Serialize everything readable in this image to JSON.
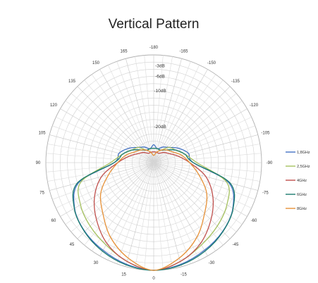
{
  "chart_data": {
    "type": "polar-line",
    "title": "Vertical Pattern",
    "angle_ticks": [
      "-180",
      "-165",
      "-150",
      "-135",
      "-120",
      "-105",
      "-90",
      "-75",
      "-60",
      "-45",
      "-30",
      "-15",
      "0",
      "15",
      "30",
      "45",
      "60",
      "75",
      "90",
      "105",
      "120",
      "135",
      "150",
      "165"
    ],
    "angle_values": [
      -180,
      -165,
      -150,
      -135,
      -120,
      -105,
      -90,
      -75,
      -60,
      -45,
      -30,
      -15,
      0,
      15,
      30,
      45,
      60,
      75,
      90,
      105,
      120,
      135,
      150,
      165
    ],
    "radial_ticks": [
      {
        "label": "-3dB",
        "value": -3
      },
      {
        "label": "-6dB",
        "value": -6
      },
      {
        "label": "-10dB",
        "value": -10
      },
      {
        "label": "-20dB",
        "value": -20
      }
    ],
    "radial_range": [
      -30,
      0
    ],
    "grid": true,
    "legend_position": "right",
    "series": [
      {
        "name": "1,8GHz",
        "color": "#4472c4",
        "angles": [
          0,
          15,
          30,
          45,
          60,
          75,
          90,
          105,
          120,
          135,
          150,
          165,
          180,
          -165,
          -150,
          -135,
          -120,
          -105,
          -90,
          -75,
          -60,
          -45,
          -30,
          -15
        ],
        "values": [
          0,
          -0.7,
          -1.8,
          -2.9,
          -4.6,
          -8.4,
          -19,
          -20,
          -22,
          -24,
          -25,
          -26,
          -25,
          -26,
          -25,
          -24,
          -22,
          -20,
          -19,
          -8.4,
          -4.6,
          -2.9,
          -1.8,
          -0.7
        ]
      },
      {
        "name": "2,5GHz",
        "color": "#a5c160",
        "angles": [
          0,
          15,
          30,
          45,
          60,
          75,
          90,
          105,
          120,
          135,
          150,
          165,
          180,
          -165,
          -150,
          -135,
          -120,
          -105,
          -90,
          -75,
          -60,
          -45,
          -30,
          -15
        ],
        "values": [
          0,
          -1.5,
          -3.5,
          -5,
          -6.5,
          -9,
          -18,
          -21,
          -23,
          -24,
          -26,
          -26,
          -26,
          -26,
          -26,
          -24,
          -23,
          -21,
          -18,
          -9,
          -6.5,
          -5,
          -3.5,
          -1.5
        ]
      },
      {
        "name": "4GHz",
        "color": "#c0504d",
        "angles": [
          0,
          15,
          30,
          45,
          60,
          75,
          90,
          105,
          120,
          135,
          150,
          165,
          180,
          -165,
          -150,
          -135,
          -120,
          -105,
          -90,
          -75,
          -60,
          -45,
          -30,
          -15
        ],
        "values": [
          0,
          -1.5,
          -4,
          -7.5,
          -11,
          -15,
          -20,
          -23,
          -25,
          -26,
          -27,
          -27,
          -27,
          -27,
          -27,
          -26,
          -25,
          -23,
          -20,
          -15,
          -11,
          -7.5,
          -4,
          -1.5
        ]
      },
      {
        "name": "6GHz",
        "color": "#1b7b6e",
        "angles": [
          0,
          15,
          30,
          45,
          60,
          75,
          90,
          105,
          120,
          135,
          150,
          165,
          180,
          -165,
          -150,
          -135,
          -120,
          -105,
          -90,
          -75,
          -60,
          -45,
          -30,
          -15
        ],
        "values": [
          0,
          -0.5,
          -1.5,
          -2.8,
          -4.5,
          -8,
          -19,
          -21,
          -23,
          -25,
          -26,
          -26,
          -26,
          -26,
          -26,
          -25,
          -23,
          -21,
          -19,
          -8,
          -4.5,
          -2.8,
          -1.5,
          -0.5
        ]
      },
      {
        "name": "8GHz",
        "color": "#e69138",
        "angles": [
          0,
          15,
          30,
          45,
          60,
          75,
          90,
          105,
          120,
          135,
          150,
          165,
          180,
          -165,
          -150,
          -135,
          -120,
          -105,
          -90,
          -75,
          -60,
          -45,
          -30,
          -15
        ],
        "values": [
          0,
          -2.5,
          -6,
          -10,
          -13,
          -17,
          -20,
          -22,
          -24,
          -25,
          -26,
          -27,
          -28,
          -27,
          -26,
          -25,
          -24,
          -22,
          -20,
          -17,
          -13,
          -10,
          -6,
          -2.5
        ]
      }
    ]
  }
}
